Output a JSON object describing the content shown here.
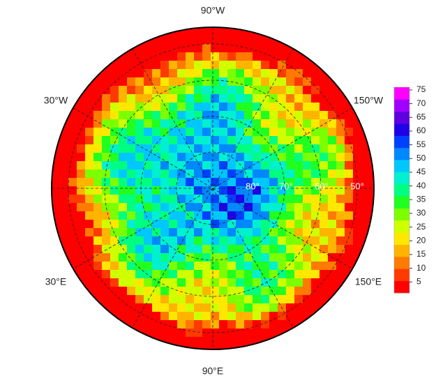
{
  "map": {
    "longitude_labels": [
      "90°W",
      "30°W",
      "150°W",
      "30°E",
      "150°E",
      "90°E"
    ],
    "latitude_labels": [
      "80°",
      "70°",
      "60°",
      "50°"
    ],
    "colorbar": {
      "lim": [
        1,
        76
      ],
      "ticks": [
        5,
        10,
        15,
        20,
        25,
        30,
        35,
        40,
        45,
        50,
        55,
        60,
        65,
        70,
        75
      ],
      "colors": [
        "#ff0000",
        "#ff3a00",
        "#ff7a00",
        "#ffb400",
        "#ffe800",
        "#d0ff00",
        "#7cff00",
        "#20ff20",
        "#00ff80",
        "#00f0d0",
        "#00c8ff",
        "#0088ff",
        "#0040ff",
        "#2000e8",
        "#6000e0",
        "#a000ff",
        "#ff00ff"
      ]
    }
  }
}
